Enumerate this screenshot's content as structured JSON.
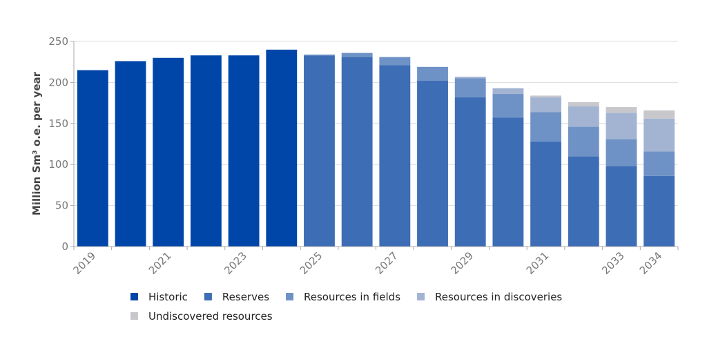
{
  "chart_data": {
    "type": "bar",
    "stacked": true,
    "title": "",
    "ylabel": "Million Sm³ o.e. per year",
    "xlabel": "",
    "ylim": [
      0,
      250
    ],
    "y_ticks": [
      0,
      50,
      100,
      150,
      200,
      250
    ],
    "grid": true,
    "legend_position": "bottom",
    "categories": [
      "2019",
      "2020",
      "2021",
      "2022",
      "2023",
      "2024",
      "2025",
      "2026",
      "2027",
      "2028",
      "2029",
      "2030",
      "2031",
      "2032",
      "2033",
      "2034"
    ],
    "x_tick_labels": [
      "2019",
      "2021",
      "2023",
      "2025",
      "2027",
      "2029",
      "2031",
      "2033",
      "2034"
    ],
    "series": [
      {
        "name": "Historic",
        "color": "#0046a8",
        "values": [
          215,
          226,
          230,
          233,
          233,
          240,
          0,
          0,
          0,
          0,
          0,
          0,
          0,
          0,
          0,
          0
        ]
      },
      {
        "name": "Reserves",
        "color": "#3d6db5",
        "values": [
          0,
          0,
          0,
          0,
          0,
          0,
          233,
          231,
          221,
          202,
          182,
          157,
          128,
          110,
          98,
          86
        ]
      },
      {
        "name": "Resources in fields",
        "color": "#6f92c6",
        "values": [
          0,
          0,
          0,
          0,
          0,
          0,
          1,
          5,
          10,
          17,
          23,
          29,
          36,
          36,
          33,
          30
        ]
      },
      {
        "name": "Resources in discoveries",
        "color": "#a3b4d3",
        "values": [
          0,
          0,
          0,
          0,
          0,
          0,
          0,
          0,
          0,
          0,
          2,
          7,
          18,
          25,
          32,
          40
        ]
      },
      {
        "name": "Undiscovered resources",
        "color": "#c8c8cc",
        "values": [
          0,
          0,
          0,
          0,
          0,
          0,
          0,
          0,
          0,
          0,
          0,
          0,
          2,
          5,
          7,
          10
        ]
      }
    ]
  }
}
